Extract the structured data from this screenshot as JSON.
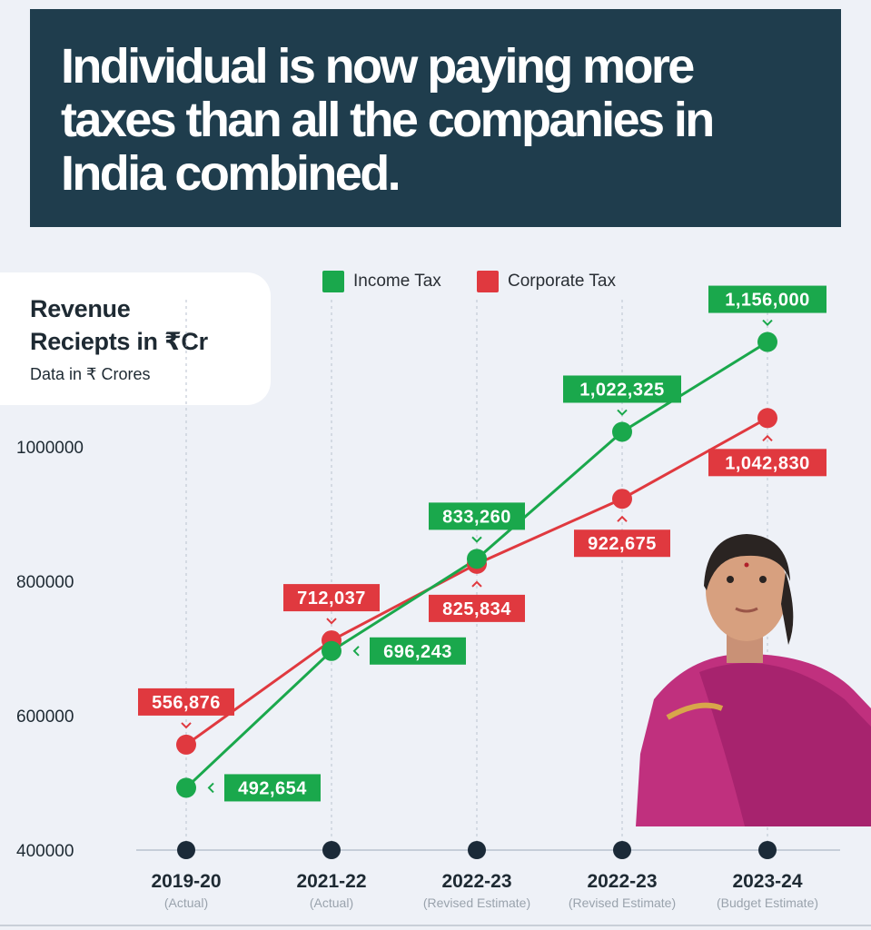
{
  "header": {
    "title": "Individual is now paying more\ntaxes than all the companies in\nIndia combined."
  },
  "info_card": {
    "title": "Revenue\nReciepts in ₹Cr",
    "subtitle": "Data in ₹ Crores"
  },
  "colors": {
    "income": "#1aa84c",
    "corporate": "#e0393f",
    "banner": "#1f3d4d"
  },
  "chart_data": {
    "type": "line",
    "title": "Revenue Reciepts in ₹Cr",
    "subtitle": "Data in ₹ Crores",
    "categories": [
      "2019-20",
      "2021-22",
      "2022-23",
      "2022-23",
      "2023-24"
    ],
    "category_notes": [
      "(Actual)",
      "(Actual)",
      "(Revised Estimate)",
      "(Revised Estimate)",
      "(Budget Estimate)"
    ],
    "series": [
      {
        "name": "Income Tax",
        "values": [
          492654,
          696243,
          833260,
          1022325,
          1156000
        ],
        "labels": [
          "492,654",
          "696,243",
          "833,260",
          "1,022,325",
          "1,156,000"
        ]
      },
      {
        "name": "Corporate Tax",
        "values": [
          556876,
          712037,
          825834,
          922675,
          1042830
        ],
        "labels": [
          "556,876",
          "712,037",
          "825,834",
          "922,675",
          "1,042,830"
        ]
      }
    ],
    "yticks": [
      "400000",
      "600000",
      "800000",
      "1000000"
    ],
    "ytick_values": [
      400000,
      600000,
      800000,
      1000000
    ],
    "ylim": [
      400000,
      1200000
    ],
    "legend_position": "top",
    "grid": "vertical dashed"
  }
}
